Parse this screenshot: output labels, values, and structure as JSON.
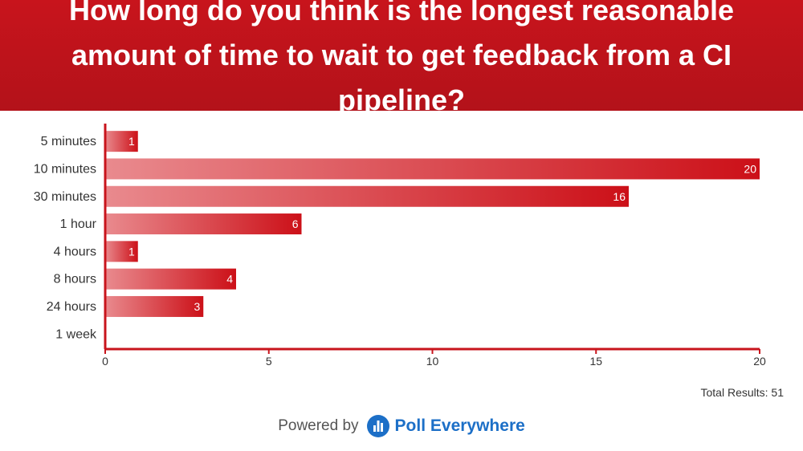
{
  "header": {
    "title": "How long do you think is the longest reasonable amount of time to wait to get feedback from a CI pipeline?"
  },
  "chart_data": {
    "type": "bar",
    "orientation": "horizontal",
    "title": "How long do you think is the longest reasonable amount of time to wait to get feedback from a CI pipeline?",
    "categories": [
      "5 minutes",
      "10 minutes",
      "30 minutes",
      "1 hour",
      "4 hours",
      "8 hours",
      "24 hours",
      "1 week"
    ],
    "values": [
      1,
      20,
      16,
      6,
      1,
      4,
      3,
      0
    ],
    "data_labels": [
      "1",
      "20",
      "16",
      "6",
      "1",
      "4",
      "3",
      ""
    ],
    "xlim": [
      0,
      20
    ],
    "x_ticks": [
      0,
      5,
      10,
      15,
      20
    ],
    "grid": false,
    "bar_color": "#cc1018",
    "axis_color": "#c8141c"
  },
  "summary": {
    "total_text": "Total Results: 51"
  },
  "footer": {
    "powered_by": "Powered by",
    "brand": "Poll Everywhere",
    "brand_color": "#1c6fc7",
    "logo_icon": "bar-chart-icon"
  }
}
